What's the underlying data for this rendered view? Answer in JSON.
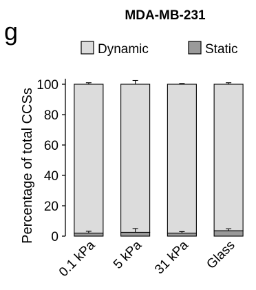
{
  "panel_label": "g",
  "colors": {
    "dynamic": "#dcdcdc",
    "static": "#9a9a9a",
    "axis": "#000000"
  },
  "chart_data": {
    "type": "bar",
    "stacked": true,
    "title": "MDA-MB-231",
    "xlabel": "",
    "ylabel": "Percentage of total CCSs",
    "ylim": [
      0,
      100
    ],
    "yticks": [
      0,
      20,
      40,
      60,
      80,
      100
    ],
    "categories": [
      "0.1 kPa",
      "5 kPa",
      "31 kPa",
      "Glass"
    ],
    "series": [
      {
        "name": "Static",
        "values": [
          2,
          2.5,
          2,
          3.5
        ],
        "errors": [
          1.2,
          2.5,
          1,
          1.3
        ]
      },
      {
        "name": "Dynamic",
        "values": [
          98,
          97.5,
          98,
          96.5
        ],
        "errors": [
          1,
          2.5,
          0.5,
          1
        ]
      }
    ],
    "legend": [
      "Dynamic",
      "Static"
    ],
    "legend_position": "top",
    "grid": false
  }
}
